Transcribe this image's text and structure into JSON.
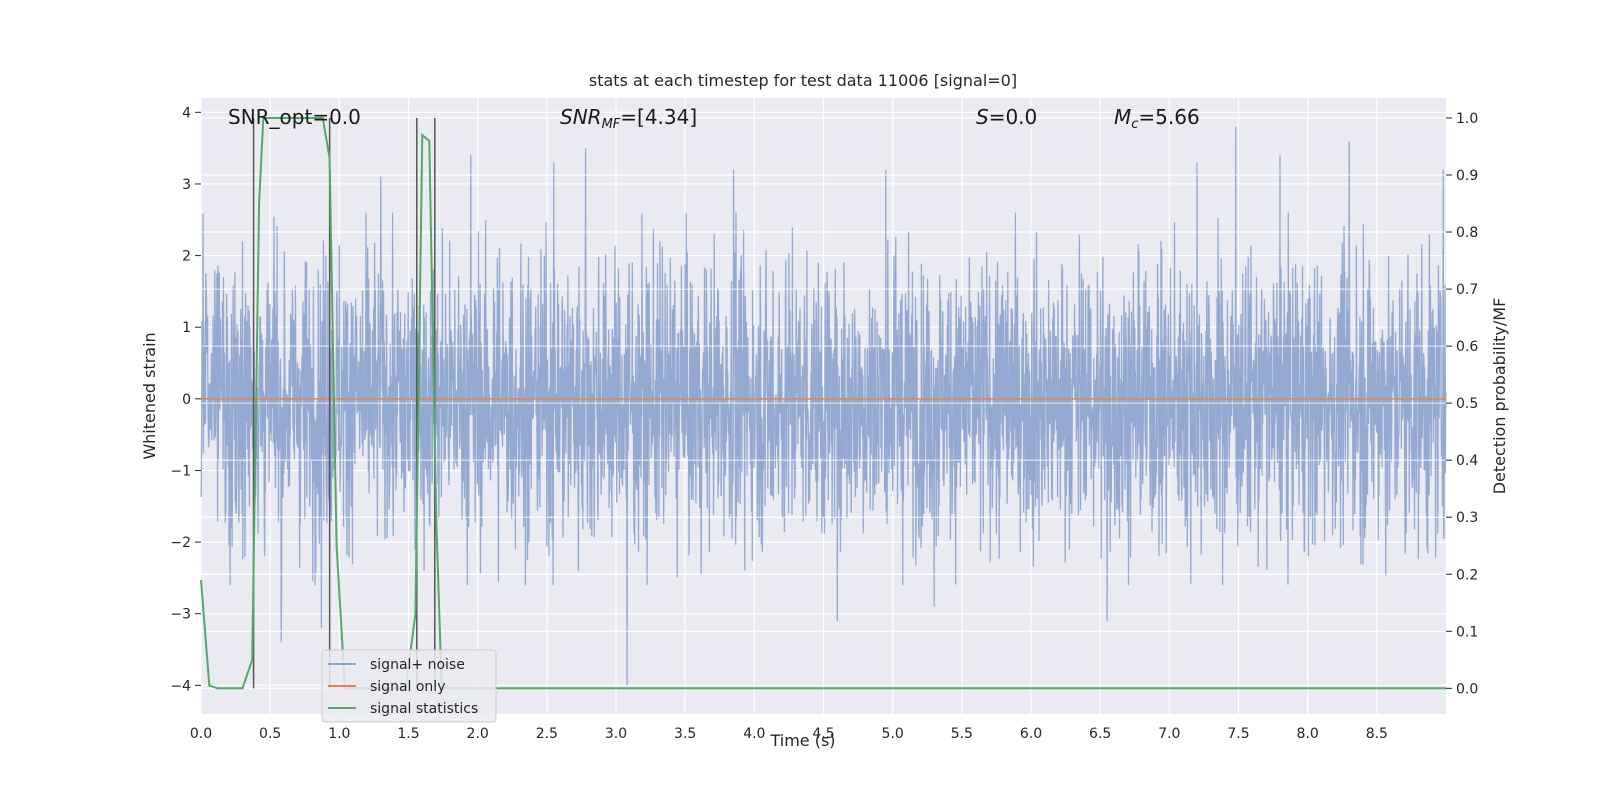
{
  "chart_data": {
    "type": "line",
    "title": "stats at each timestep for test data 11006 [signal=0]",
    "xlabel": "Time (s)",
    "ylabel": "Whitened strain",
    "y2label": "Detection probability/MF",
    "xlim": [
      0,
      9.0
    ],
    "ylim": [
      -4.4,
      4.2
    ],
    "y2lim": [
      -0.045,
      1.035
    ],
    "xticks": [
      "0.0",
      "0.5",
      "1.0",
      "1.5",
      "2.0",
      "2.5",
      "3.0",
      "3.5",
      "4.0",
      "4.5",
      "5.0",
      "5.5",
      "6.0",
      "6.5",
      "7.0",
      "7.5",
      "8.0",
      "8.5"
    ],
    "yticks": [
      "4",
      "3",
      "2",
      "1",
      "0",
      "−1",
      "−2",
      "−3",
      "−4"
    ],
    "y2ticks": [
      "1.0",
      "0.9",
      "0.8",
      "0.7",
      "0.6",
      "0.5",
      "0.4",
      "0.3",
      "0.2",
      "0.1",
      "0.0"
    ],
    "grid": true,
    "legend_position": "lower-left",
    "annotations": {
      "snr_opt": "SNR_opt=0.0",
      "snr_mf_base": "SNR",
      "snr_mf_sub": "MF",
      "snr_mf_value": "=[4.34]",
      "s_base": "S",
      "s_value": "=0.0",
      "mc_base": "M",
      "mc_sub": "c",
      "mc_value": "=5.66"
    },
    "series": [
      {
        "name": "signal+ noise",
        "color": "#8fa5cf",
        "axis": "left",
        "description_range": [
          -1.6,
          1.6
        ],
        "peaks": [
          {
            "x": 0.1,
            "y": 1.8
          },
          {
            "x": 0.3,
            "y": 2.2
          },
          {
            "x": 0.38,
            "y": -2.6
          },
          {
            "x": 0.58,
            "y": -3.4
          },
          {
            "x": 0.87,
            "y": -3.2
          },
          {
            "x": 1.3,
            "y": 3.1
          },
          {
            "x": 1.95,
            "y": 3.4
          },
          {
            "x": 2.55,
            "y": 3.3
          },
          {
            "x": 2.78,
            "y": 3.5
          },
          {
            "x": 3.08,
            "y": -4.0
          },
          {
            "x": 3.85,
            "y": 3.2
          },
          {
            "x": 4.6,
            "y": -3.1
          },
          {
            "x": 4.95,
            "y": 3.2
          },
          {
            "x": 5.3,
            "y": -2.9
          },
          {
            "x": 7.48,
            "y": 3.8
          },
          {
            "x": 7.2,
            "y": 3.3
          },
          {
            "x": 7.8,
            "y": 3.4
          },
          {
            "x": 8.3,
            "y": 3.6
          },
          {
            "x": 8.98,
            "y": 3.2
          },
          {
            "x": 6.55,
            "y": -3.1
          }
        ]
      },
      {
        "name": "signal only",
        "color": "#dd8452",
        "axis": "left",
        "x": [
          0,
          9.0
        ],
        "y": [
          0,
          0
        ]
      },
      {
        "name": "signal statistics",
        "color": "#55a868",
        "axis": "right",
        "x": [
          0,
          0.06,
          0.12,
          0.3,
          0.37,
          0.42,
          0.45,
          0.55,
          0.7,
          0.88,
          0.93,
          0.98,
          1.04,
          1.48,
          1.55,
          1.6,
          1.65,
          1.7,
          1.74,
          1.8,
          9.0
        ],
        "y": [
          0.19,
          0.005,
          0.0,
          0.0,
          0.05,
          0.85,
          1.0,
          1.0,
          1.0,
          1.0,
          0.93,
          0.25,
          0.0,
          0.0,
          0.13,
          0.97,
          0.96,
          0.3,
          0.0,
          0.0,
          0.0
        ]
      }
    ],
    "vertical_markers": [
      0.38,
      0.93,
      1.56,
      1.69
    ]
  }
}
